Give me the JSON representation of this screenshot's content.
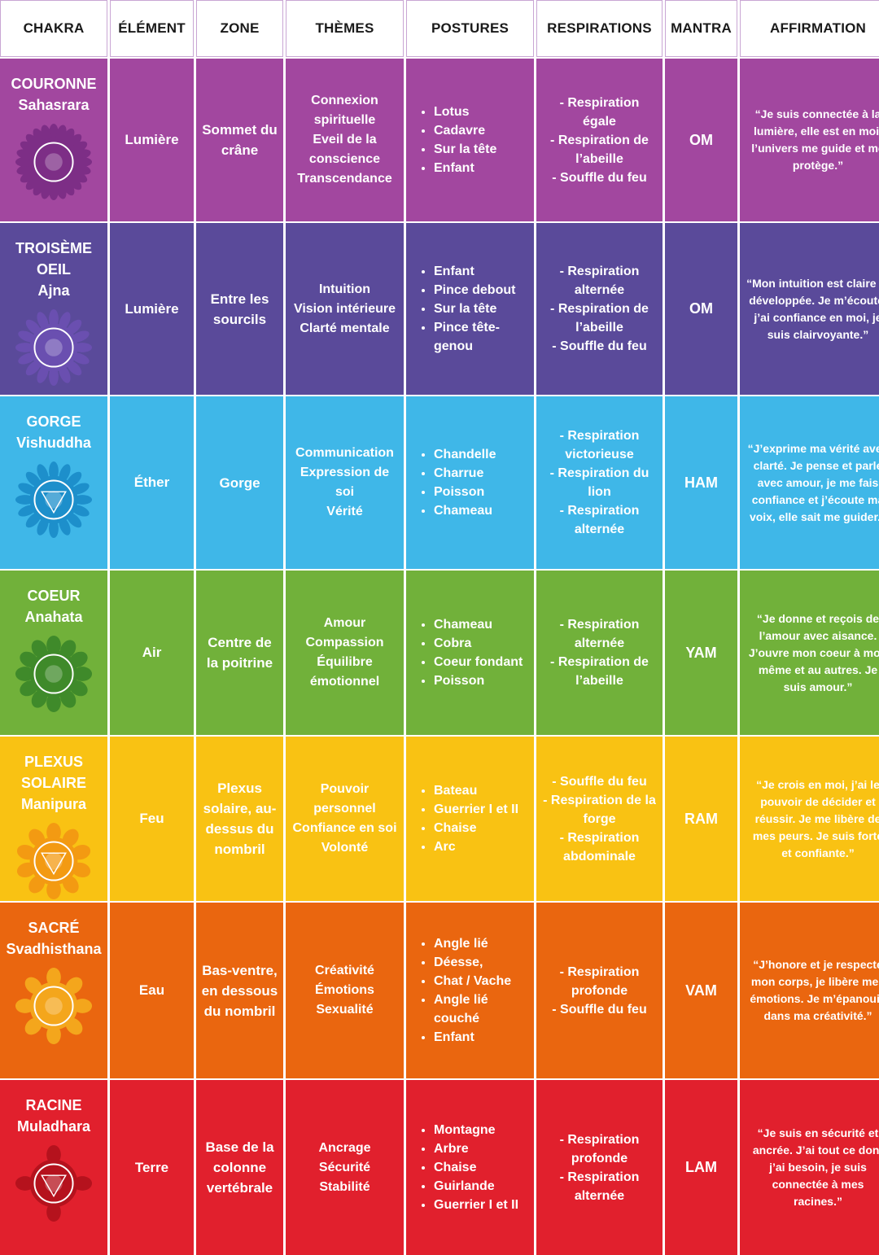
{
  "headers": [
    "CHAKRA",
    "ÉLÉMENT",
    "ZONE",
    "THÈMES",
    "POSTURES",
    "RESPIRATIONS",
    "MANTRA",
    "AFFIRMATION"
  ],
  "rows": [
    {
      "name": "COURONNE",
      "sanskrit": "Sahasrara",
      "color": "#a2479f",
      "symbol_color": "#7d2e86",
      "icon": "crown-chakra-lotus-icon",
      "element": "Lumière",
      "zone": "Sommet du crâne",
      "themes": [
        "Connexion spirituelle",
        "Eveil de la conscience",
        "Transcendance"
      ],
      "postures": [
        "Lotus",
        "Cadavre",
        "Sur la tête",
        "Enfant"
      ],
      "respirations": [
        "- Respiration égale",
        "- Respiration de l’abeille",
        "- Souffle du feu"
      ],
      "mantra": "OM",
      "affirmation": "“Je suis connectée à la lumière, elle est en moi, l’univers me guide et me protège.”"
    },
    {
      "name": "TROISÈME OEIL",
      "sanskrit": "Ajna",
      "color": "#5a4a9a",
      "symbol_color": "#6a4fb0",
      "icon": "third-eye-chakra-icon",
      "element": "Lumière",
      "zone": "Entre les sourcils",
      "themes": [
        "Intuition",
        "Vision intérieure",
        "Clarté mentale"
      ],
      "postures": [
        "Enfant",
        "Pince debout",
        "Sur la tête",
        "Pince tête-genou"
      ],
      "respirations": [
        "- Respiration alternée",
        "- Respiration de l’abeille",
        "- Souffle du feu"
      ],
      "mantra": "OM",
      "affirmation": "“Mon intuition est claire et développée. Je m’écoute, j’ai confiance en moi, je suis clairvoyante.”"
    },
    {
      "name": "GORGE",
      "sanskrit": "Vishuddha",
      "color": "#3fb7e8",
      "symbol_color": "#1d8fcb",
      "icon": "throat-chakra-icon",
      "element": "Éther",
      "zone": "Gorge",
      "themes": [
        "Communication",
        "Expression de soi",
        "Vérité"
      ],
      "postures": [
        "Chandelle",
        "Charrue",
        "Poisson",
        "Chameau"
      ],
      "respirations": [
        "- Respiration victorieuse",
        "- Respiration du lion",
        "- Respiration alternée"
      ],
      "mantra": "HAM",
      "affirmation": "“J’exprime ma vérité avec clarté. Je pense et parle avec amour, je me fais confiance et j’écoute ma voix, elle sait me guider.”"
    },
    {
      "name": "COEUR",
      "sanskrit": "Anahata",
      "color": "#71b13a",
      "symbol_color": "#3f8a2a",
      "icon": "heart-chakra-icon",
      "element": "Air",
      "zone": "Centre de la poitrine",
      "themes": [
        "Amour",
        "Compassion",
        "Équilibre émotionnel"
      ],
      "postures": [
        "Chameau",
        "Cobra",
        "Coeur fondant",
        "Poisson"
      ],
      "respirations": [
        "- Respiration alternée",
        "- Respiration de l’abeille"
      ],
      "mantra": "YAM",
      "affirmation": "“Je donne et reçois de l’amour avec aisance. J’ouvre mon coeur à moi-même et au autres. Je suis amour.”"
    },
    {
      "name": "PLEXUS SOLAIRE",
      "sanskrit": "Manipura",
      "color": "#f9c213",
      "symbol_color": "#f39a12",
      "icon": "solar-plexus-chakra-icon",
      "element": "Feu",
      "zone": "Plexus solaire, au-dessus du nombril",
      "themes": [
        "Pouvoir personnel",
        "Confiance en soi",
        "Volonté"
      ],
      "postures": [
        "Bateau",
        "Guerrier I et II",
        "Chaise",
        "Arc"
      ],
      "respirations": [
        "- Souffle du feu",
        "- Respiration de la forge",
        "- Respiration abdominale"
      ],
      "mantra": "RAM",
      "affirmation": "“Je crois en moi, j’ai le pouvoir de décider et réussir. Je me libère de mes peurs. Je suis forte et confiante.”"
    },
    {
      "name": "SACRÉ",
      "sanskrit": "Svadhisthana",
      "color": "#ea660f",
      "symbol_color": "#f4a61c",
      "icon": "sacral-chakra-icon",
      "element": "Eau",
      "zone": "Bas-ventre, en dessous du nombril",
      "themes": [
        "Créativité",
        "Émotions",
        "Sexualité"
      ],
      "postures": [
        "Angle lié",
        "Déesse,",
        "Chat / Vache",
        "Angle lié couché",
        "Enfant"
      ],
      "respirations": [
        "- Respiration profonde",
        "- Souffle du feu"
      ],
      "mantra": "VAM",
      "affirmation": "“J’honore et je respecte mon corps, je libère mes émotions. Je m’épanouis dans ma créativité.”"
    },
    {
      "name": "RACINE",
      "sanskrit": "Muladhara",
      "color": "#e1202d",
      "symbol_color": "#b5121d",
      "icon": "root-chakra-icon",
      "element": "Terre",
      "zone": "Base de la colonne vertébrale",
      "themes": [
        "Ancrage",
        "Sécurité",
        "Stabilité"
      ],
      "postures": [
        "Montagne",
        "Arbre",
        "Chaise",
        "Guirlande",
        "Guerrier I et II"
      ],
      "respirations": [
        "- Respiration profonde",
        "- Respiration alternée"
      ],
      "mantra": "LAM",
      "affirmation": "“Je suis en sécurité et ancrée. J’ai tout ce dont j’ai besoin, je suis connectée à mes racines.”"
    }
  ]
}
